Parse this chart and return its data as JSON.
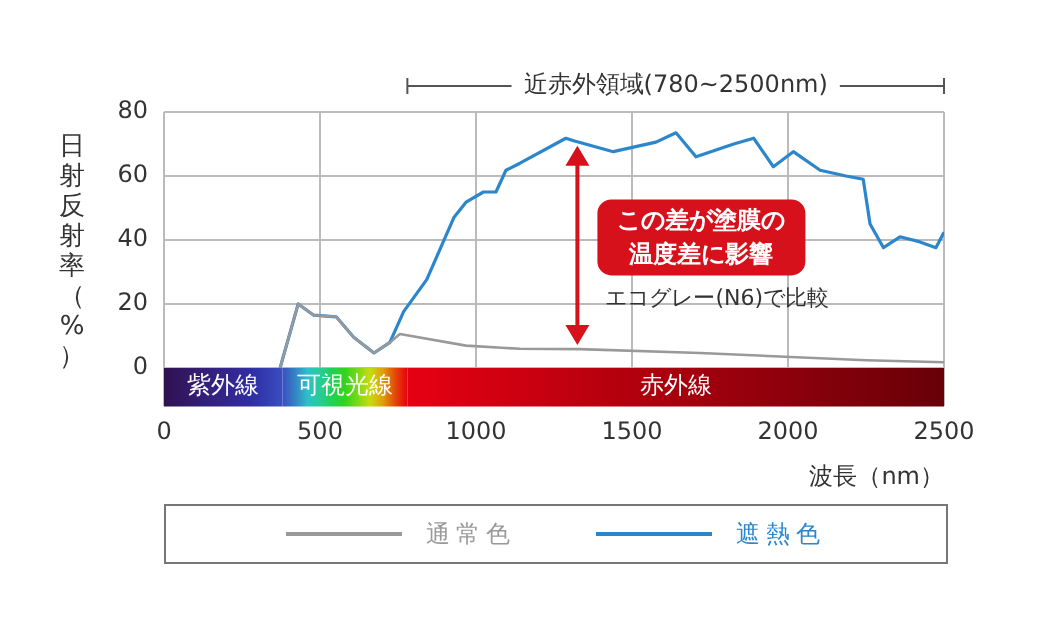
{
  "chart_data": {
    "type": "line",
    "xlabel": "波長（nm）",
    "ylabel": "日射反射率（%）",
    "xlim": [
      0,
      2500
    ],
    "xticks": [
      0,
      500,
      1000,
      1500,
      2000,
      2500
    ],
    "ylim": [
      -12,
      80
    ],
    "yticks": [
      0,
      20,
      40,
      60,
      80
    ],
    "grid": true,
    "legend": "bottom",
    "marker": "none",
    "line_style": "solid",
    "series": [
      {
        "name": "通常色",
        "color": "#999999",
        "x": [
          372,
          430,
          480,
          552,
          608,
          673,
          724,
          756,
          968,
          1141,
          1333,
          1718,
          2250,
          2500
        ],
        "values": [
          0,
          20,
          16.5,
          16,
          9.6,
          4.7,
          8,
          10.6,
          7,
          6,
          5.9,
          4.7,
          2.4,
          1.8
        ]
      },
      {
        "name": "遮熱色",
        "color": "#2b86cc",
        "x": [
          372,
          430,
          480,
          552,
          608,
          673,
          724,
          768,
          842,
          929,
          968,
          1024,
          1064,
          1096,
          1141,
          1288,
          1313,
          1440,
          1577,
          1641,
          1705,
          1826,
          1890,
          1953,
          2017,
          2103,
          2186,
          2241,
          2263,
          2306,
          2359,
          2423,
          2474,
          2500
        ],
        "values": [
          0,
          20,
          16.5,
          16,
          9.6,
          4.7,
          8,
          17.6,
          27.6,
          47,
          51.8,
          55,
          55,
          61.8,
          64,
          71.8,
          71,
          67.6,
          70.6,
          73.5,
          66,
          70,
          71.8,
          62.9,
          67.6,
          61.8,
          60,
          59,
          45,
          37.6,
          41,
          39.4,
          37.6,
          42.4
        ]
      }
    ],
    "bands": [
      {
        "axis": "x",
        "from": 0,
        "to": 380,
        "label": "紫外線",
        "color": "#2e1250"
      },
      {
        "axis": "x",
        "from": 380,
        "to": 780,
        "label": "可視光線",
        "color": "#3a4fc0"
      },
      {
        "axis": "x",
        "from": 780,
        "to": 2500,
        "label": "赤外線",
        "color": "#e60012"
      }
    ],
    "annotations": [
      "近赤外領域(780~2500nm)",
      "この差が塗膜の温度差に影響",
      "エコグレー(N6)で比較"
    ]
  }
}
